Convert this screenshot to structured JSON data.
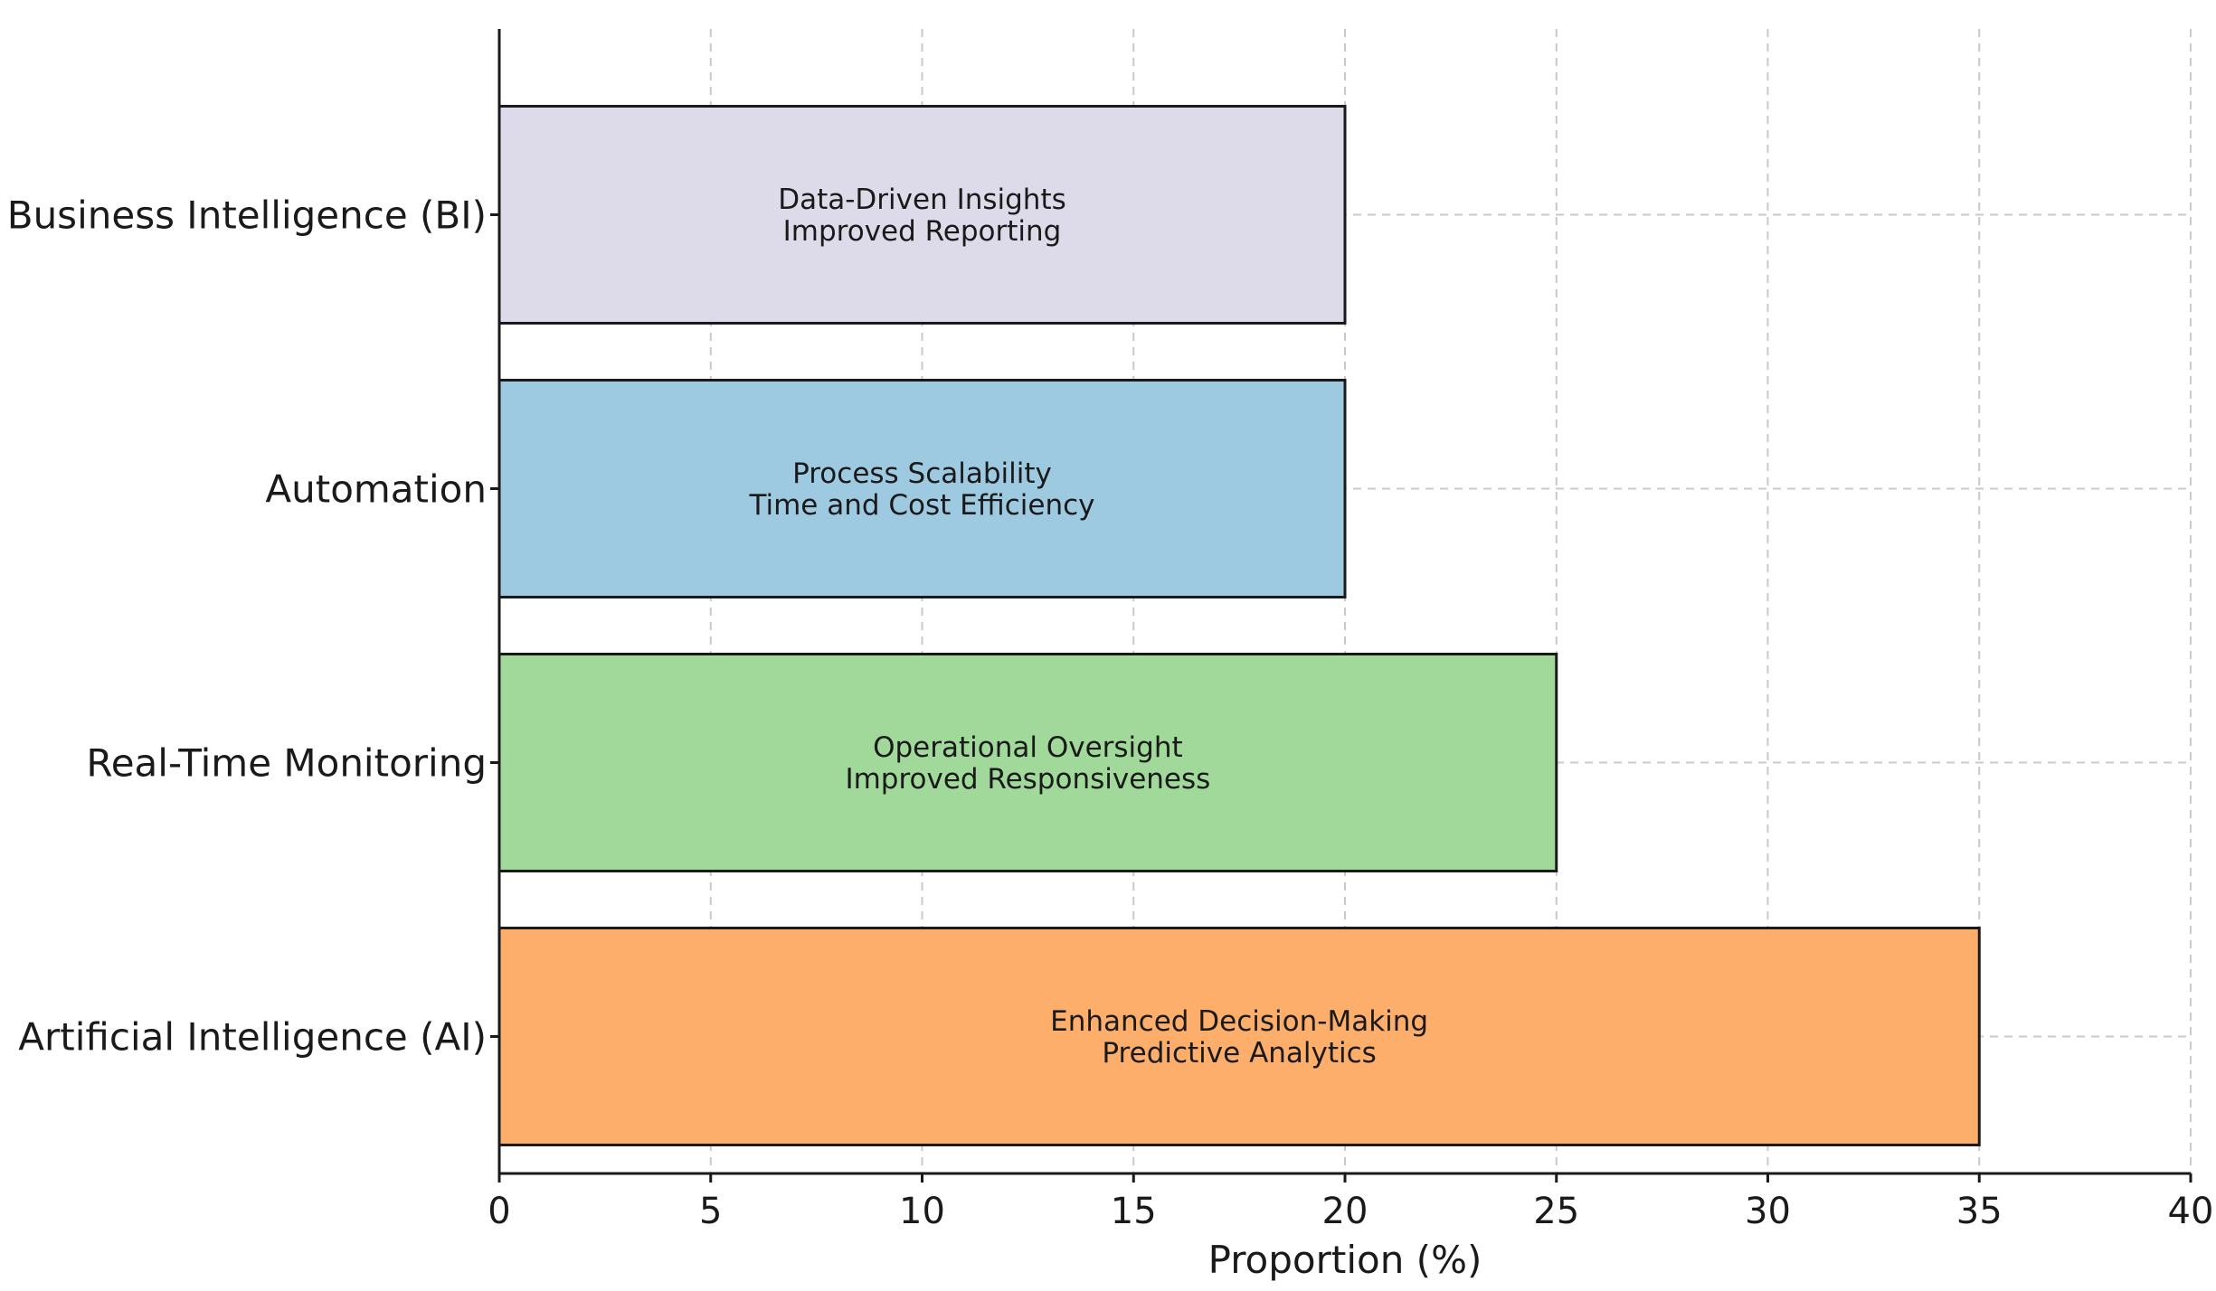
{
  "chart_data": {
    "type": "bar",
    "orientation": "horizontal",
    "categories": [
      "Business Intelligence (BI)",
      "Automation",
      "Real-Time Monitoring",
      "Artificial Intelligence (AI)"
    ],
    "values": [
      20,
      20,
      25,
      35
    ],
    "bar_labels": [
      [
        "Data-Driven Insights",
        "Improved Reporting"
      ],
      [
        "Process Scalability",
        "Time and Cost Efficiency"
      ],
      [
        "Operational Oversight",
        "Improved Responsiveness"
      ],
      [
        "Enhanced Decision-Making",
        "Predictive Analytics"
      ]
    ],
    "colors": [
      "#dddbe9",
      "#9ecae1",
      "#a1d99b",
      "#fdae6b"
    ],
    "title": "",
    "xlabel": "Proportion (%)",
    "ylabel": "",
    "xlim": [
      0,
      40
    ],
    "xticks": [
      0,
      5,
      10,
      15,
      20,
      25,
      30,
      35,
      40
    ],
    "xtick_labels": [
      "0",
      "5",
      "10",
      "15",
      "20",
      "25",
      "30",
      "35",
      "40"
    ],
    "grid": true,
    "legend": "none"
  }
}
